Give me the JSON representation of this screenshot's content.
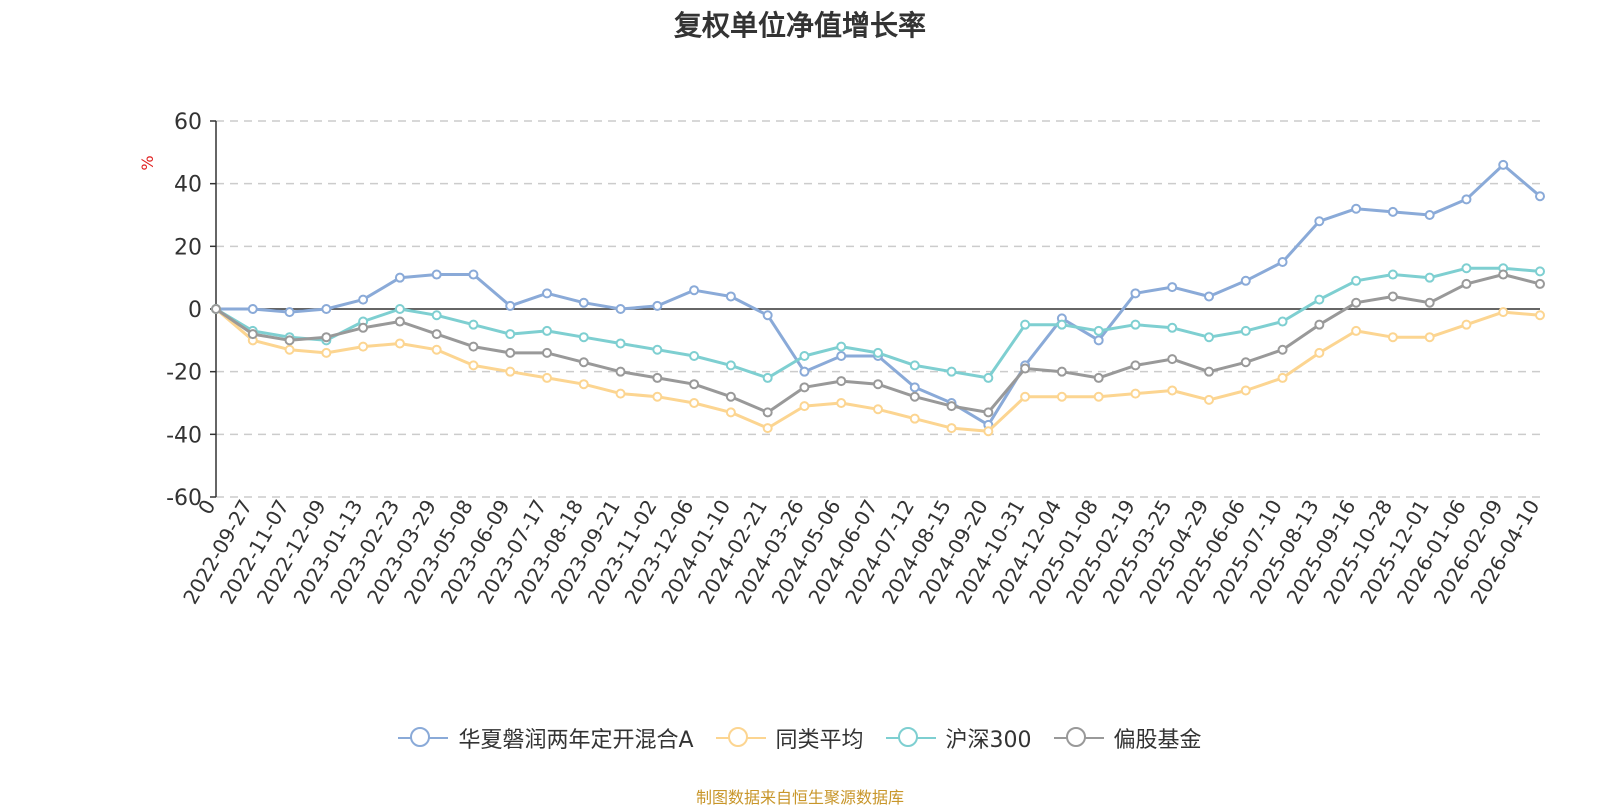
{
  "chart_data": {
    "type": "line",
    "title": "复权单位净值增长率",
    "ylabel": "%",
    "ylim": [
      -60,
      60
    ],
    "yticks": [
      60,
      40,
      20,
      0,
      -20,
      -40,
      -60
    ],
    "grid": true,
    "legend_position": "bottom",
    "xlabels": [
      "0",
      "2022-09-27",
      "2022-11-07",
      "2022-12-09",
      "2023-01-13",
      "2023-02-23",
      "2023-03-29",
      "2023-05-08",
      "2023-06-09",
      "2023-07-17",
      "2023-08-18",
      "2023-09-21",
      "2023-11-02",
      "2023-12-06",
      "2024-01-10",
      "2024-02-21",
      "2024-03-26",
      "2024-05-06",
      "2024-06-07",
      "2024-07-12",
      "2024-08-15",
      "2024-09-20",
      "2024-10-31",
      "2024-12-04",
      "2025-01-08",
      "2025-02-19",
      "2025-03-25",
      "2025-04-29",
      "2025-06-06",
      "2025-07-10",
      "2025-08-13",
      "2025-09-16",
      "2025-10-28",
      "2025-12-01",
      "2026-01-06",
      "2026-02-09",
      "2026-04-10"
    ],
    "series": [
      {
        "name": "华夏磐润两年定开混合A",
        "color": "#8aaad8",
        "values": [
          0,
          0,
          -1,
          0,
          3,
          10,
          11,
          11,
          1,
          5,
          2,
          0,
          1,
          6,
          4,
          -2,
          -20,
          -15,
          -15,
          -25,
          -30,
          -37,
          -18,
          -3,
          -10,
          5,
          7,
          4,
          9,
          15,
          28,
          32,
          31,
          30,
          35,
          46,
          36
        ]
      },
      {
        "name": "同类平均",
        "color": "#fcd591",
        "values": [
          0,
          -10,
          -13,
          -14,
          -12,
          -11,
          -13,
          -18,
          -20,
          -22,
          -24,
          -27,
          -28,
          -30,
          -33,
          -38,
          -31,
          -30,
          -32,
          -35,
          -38,
          -39,
          -28,
          -28,
          -28,
          -27,
          -26,
          -29,
          -26,
          -22,
          -14,
          -7,
          -9,
          -9,
          -5,
          -1,
          -2
        ]
      },
      {
        "name": "沪深300",
        "color": "#7ecfd1",
        "values": [
          0,
          -7,
          -9,
          -10,
          -4,
          0,
          -2,
          -5,
          -8,
          -7,
          -9,
          -11,
          -13,
          -15,
          -18,
          -22,
          -15,
          -12,
          -14,
          -18,
          -20,
          -22,
          -5,
          -5,
          -7,
          -5,
          -6,
          -9,
          -7,
          -4,
          3,
          9,
          11,
          10,
          13,
          13,
          12
        ]
      },
      {
        "name": "偏股基金",
        "color": "#999999",
        "values": [
          0,
          -8,
          -10,
          -9,
          -6,
          -4,
          -8,
          -12,
          -14,
          -14,
          -17,
          -20,
          -22,
          -24,
          -28,
          -33,
          -25,
          -23,
          -24,
          -28,
          -31,
          -33,
          -19,
          -20,
          -22,
          -18,
          -16,
          -20,
          -17,
          -13,
          -5,
          2,
          4,
          2,
          8,
          11,
          8
        ]
      }
    ]
  },
  "source": "制图数据来自恒生聚源数据库"
}
